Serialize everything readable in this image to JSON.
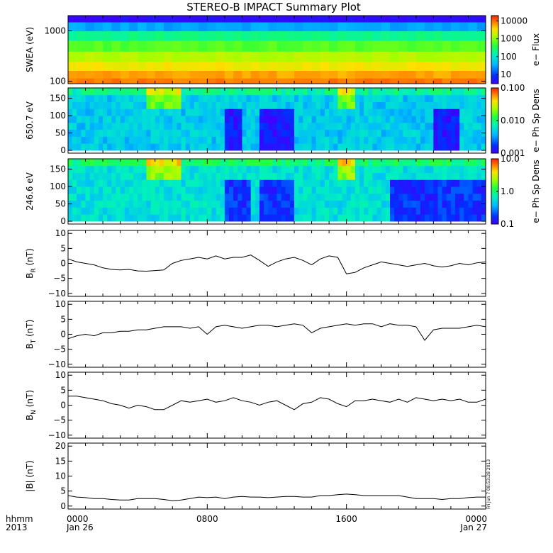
{
  "title": "STEREO-B IMPACT Summary Plot",
  "stamp": "Fri Jun  7 08:53:28 2013",
  "colors": {
    "trace": "#000000",
    "background": "#ffffff",
    "frame": "#000000"
  },
  "time_axis": {
    "row1_label": "hhmm",
    "row2_label": "2013",
    "ticks": [
      {
        "hours": 0,
        "hhmm": "0000",
        "date": "Jan 26"
      },
      {
        "hours": 8,
        "hhmm": "0800",
        "date": ""
      },
      {
        "hours": 16,
        "hhmm": "1600",
        "date": ""
      },
      {
        "hours": 24,
        "hhmm": "0000",
        "date": "Jan 27"
      }
    ]
  },
  "chart_data": [
    {
      "id": "swea",
      "type": "heatmap",
      "ylabel": "SWEA (eV)",
      "ylog": true,
      "ylim": [
        90,
        2000
      ],
      "yticks": [
        {
          "v": 100,
          "t": "100"
        },
        {
          "v": 1000,
          "t": "1000"
        }
      ],
      "colorbar": {
        "label": "e− Flux",
        "log": true,
        "range": [
          3,
          20000
        ],
        "ticks": [
          {
            "v": 10,
            "t": "10"
          },
          {
            "v": 100,
            "t": "100"
          },
          {
            "v": 1000,
            "t": "1000"
          },
          {
            "v": 10000,
            "t": "10000"
          }
        ]
      },
      "description_rows_energy_eV": [
        1800,
        1200,
        800,
        500,
        300,
        200,
        130,
        100
      ],
      "description_rows_value": [
        4,
        30,
        200,
        600,
        1500,
        3000,
        6000,
        9000
      ]
    },
    {
      "id": "pad650",
      "type": "heatmap",
      "ylabel": "650.7 eV",
      "ylim": [
        -8,
        180
      ],
      "yticks": [
        {
          "v": 0,
          "t": "0"
        },
        {
          "v": 50,
          "t": "50"
        },
        {
          "v": 100,
          "t": "100"
        },
        {
          "v": 150,
          "t": "150"
        }
      ],
      "colorbar": {
        "label": "e− Ph Sp Dens",
        "log": true,
        "range": [
          0.001,
          0.1
        ],
        "ticks": [
          {
            "v": 0.001,
            "t": "0.001"
          },
          {
            "v": 0.01,
            "t": "0.010"
          },
          {
            "v": 0.1,
            "t": "0.100"
          }
        ]
      },
      "typical_value": 0.004,
      "enhanced_intervals_hours": [
        [
          4.5,
          6.5
        ],
        [
          15.5,
          16.5
        ]
      ],
      "depleted_intervals_hours": [
        [
          9,
          10
        ],
        [
          11,
          13
        ],
        [
          21,
          22.5
        ]
      ]
    },
    {
      "id": "pad246",
      "type": "heatmap",
      "ylabel": "246.6 eV",
      "ylim": [
        -8,
        180
      ],
      "yticks": [
        {
          "v": 0,
          "t": "0"
        },
        {
          "v": 50,
          "t": "50"
        },
        {
          "v": 100,
          "t": "100"
        },
        {
          "v": 150,
          "t": "150"
        }
      ],
      "colorbar": {
        "label": "e− Ph Sp Dens",
        "log": true,
        "range": [
          0.1,
          10
        ],
        "ticks": [
          {
            "v": 0.1,
            "t": "0.1"
          },
          {
            "v": 1,
            "t": "1.0"
          },
          {
            "v": 10,
            "t": "10.0"
          }
        ]
      },
      "typical_value": 0.5,
      "enhanced_intervals_hours": [
        [
          4.5,
          6.5
        ],
        [
          15.5,
          16.5
        ]
      ],
      "depleted_intervals_hours": [
        [
          9,
          10.5
        ],
        [
          11,
          13
        ],
        [
          18.5,
          24
        ]
      ]
    },
    {
      "id": "br",
      "type": "line",
      "ylabel": "B",
      "ysub": "R",
      "yunit": " (nT)",
      "ylim": [
        -11,
        11
      ],
      "yticks": [
        {
          "v": -10,
          "t": "−10"
        },
        {
          "v": -5,
          "t": "−5"
        },
        {
          "v": 0,
          "t": "0"
        },
        {
          "v": 5,
          "t": "5"
        },
        {
          "v": 10,
          "t": "10"
        }
      ],
      "x": [
        0,
        0.5,
        1,
        1.5,
        2,
        2.5,
        3,
        3.5,
        4,
        4.5,
        5,
        5.5,
        6,
        6.5,
        7,
        7.5,
        8,
        8.5,
        9,
        9.5,
        10,
        10.5,
        11,
        11.5,
        12,
        12.5,
        13,
        13.5,
        14,
        14.5,
        15,
        15.5,
        16,
        16.5,
        17,
        17.5,
        18,
        18.5,
        19,
        19.5,
        20,
        20.5,
        21,
        21.5,
        22,
        22.5,
        23,
        23.5,
        24
      ],
      "y": [
        1.5,
        0.5,
        0,
        -0.5,
        -1.5,
        -2,
        -2.2,
        -2,
        -2.5,
        -2.6,
        -2.4,
        -2.2,
        0,
        1,
        1.5,
        2,
        1.5,
        2.5,
        1.5,
        2,
        2,
        2.8,
        1,
        -1,
        0.5,
        1.5,
        2,
        1,
        -0.5,
        1.5,
        2.5,
        2,
        -3.5,
        -3,
        -1.5,
        -0.5,
        0.5,
        0,
        -0.5,
        -1,
        -0.5,
        0,
        -0.8,
        -1.2,
        -0.8,
        0,
        -0.5,
        0.2,
        0.5
      ]
    },
    {
      "id": "bt",
      "type": "line",
      "ylabel": "B",
      "ysub": "T",
      "yunit": " (nT)",
      "ylim": [
        -11,
        11
      ],
      "yticks": [
        {
          "v": -10,
          "t": "−10"
        },
        {
          "v": -5,
          "t": "−5"
        },
        {
          "v": 0,
          "t": "0"
        },
        {
          "v": 5,
          "t": "5"
        },
        {
          "v": 10,
          "t": "10"
        }
      ],
      "x": [
        0,
        0.5,
        1,
        1.5,
        2,
        2.5,
        3,
        3.5,
        4,
        4.5,
        5,
        5.5,
        6,
        6.5,
        7,
        7.5,
        8,
        8.5,
        9,
        9.5,
        10,
        10.5,
        11,
        11.5,
        12,
        12.5,
        13,
        13.5,
        14,
        14.5,
        15,
        15.5,
        16,
        16.5,
        17,
        17.5,
        18,
        18.5,
        19,
        19.5,
        20,
        20.5,
        21,
        21.5,
        22,
        22.5,
        23,
        23.5,
        24
      ],
      "y": [
        -1.5,
        -0.5,
        0,
        -0.5,
        0.5,
        0.5,
        1,
        1,
        1.5,
        1.5,
        2,
        2.5,
        2.5,
        2.5,
        2,
        2.5,
        0,
        2.5,
        3,
        2.5,
        2,
        2.5,
        3,
        3,
        2.5,
        3,
        3.5,
        3,
        0.5,
        2,
        2.5,
        3,
        3.5,
        3,
        3.5,
        3.5,
        2.5,
        3.5,
        3,
        3,
        2.5,
        -2,
        1.5,
        2,
        2,
        2,
        2.5,
        3,
        2.5
      ]
    },
    {
      "id": "bn",
      "type": "line",
      "ylabel": "B",
      "ysub": "N",
      "yunit": " (nT)",
      "ylim": [
        -11,
        11
      ],
      "yticks": [
        {
          "v": -10,
          "t": "−10"
        },
        {
          "v": -5,
          "t": "−5"
        },
        {
          "v": 0,
          "t": "0"
        },
        {
          "v": 5,
          "t": "5"
        },
        {
          "v": 10,
          "t": "10"
        }
      ],
      "x": [
        0,
        0.5,
        1,
        1.5,
        2,
        2.5,
        3,
        3.5,
        4,
        4.5,
        5,
        5.5,
        6,
        6.5,
        7,
        7.5,
        8,
        8.5,
        9,
        9.5,
        10,
        10.5,
        11,
        11.5,
        12,
        12.5,
        13,
        13.5,
        14,
        14.5,
        15,
        15.5,
        16,
        16.5,
        17,
        17.5,
        18,
        18.5,
        19,
        19.5,
        20,
        20.5,
        21,
        21.5,
        22,
        22.5,
        23,
        23.5,
        24
      ],
      "y": [
        3,
        3,
        2.5,
        2,
        1.5,
        0.5,
        0,
        -1,
        0,
        -0.5,
        -1.5,
        -1.5,
        0,
        1.5,
        1,
        1.5,
        2,
        1,
        1.5,
        2.5,
        1.5,
        1,
        0,
        1,
        1.5,
        0,
        -1.5,
        0.5,
        1,
        2.5,
        2,
        0.5,
        -0.5,
        1.5,
        1.5,
        2,
        1.5,
        1,
        2,
        1,
        2.5,
        2,
        1.5,
        2,
        1.5,
        2,
        1,
        1,
        2
      ]
    },
    {
      "id": "bmag",
      "type": "line",
      "ylabel": "|B| (nT)",
      "ylim": [
        -1,
        21
      ],
      "yticks": [
        {
          "v": 0,
          "t": "0"
        },
        {
          "v": 5,
          "t": "5"
        },
        {
          "v": 10,
          "t": "10"
        },
        {
          "v": 15,
          "t": "15"
        },
        {
          "v": 20,
          "t": "20"
        }
      ],
      "x": [
        0,
        0.5,
        1,
        1.5,
        2,
        2.5,
        3,
        3.5,
        4,
        4.5,
        5,
        5.5,
        6,
        6.5,
        7,
        7.5,
        8,
        8.5,
        9,
        9.5,
        10,
        10.5,
        11,
        11.5,
        12,
        12.5,
        13,
        13.5,
        14,
        14.5,
        15,
        15.5,
        16,
        16.5,
        17,
        17.5,
        18,
        18.5,
        19,
        19.5,
        20,
        20.5,
        21,
        21.5,
        22,
        22.5,
        23,
        23.5,
        24
      ],
      "y": [
        3.5,
        3,
        2.8,
        2.5,
        2.5,
        2.2,
        2,
        2,
        2.5,
        2.5,
        2.5,
        2.2,
        1.8,
        2,
        2.5,
        3,
        2.8,
        3,
        2.5,
        3,
        3.2,
        3,
        3,
        2.8,
        3,
        3.2,
        3.2,
        3,
        3,
        3.5,
        3.5,
        3.8,
        4,
        3.8,
        3.5,
        3.5,
        3.5,
        3.5,
        3.5,
        3,
        2.5,
        2.5,
        2.5,
        2.2,
        2.5,
        2.5,
        2.8,
        3,
        3
      ]
    }
  ]
}
